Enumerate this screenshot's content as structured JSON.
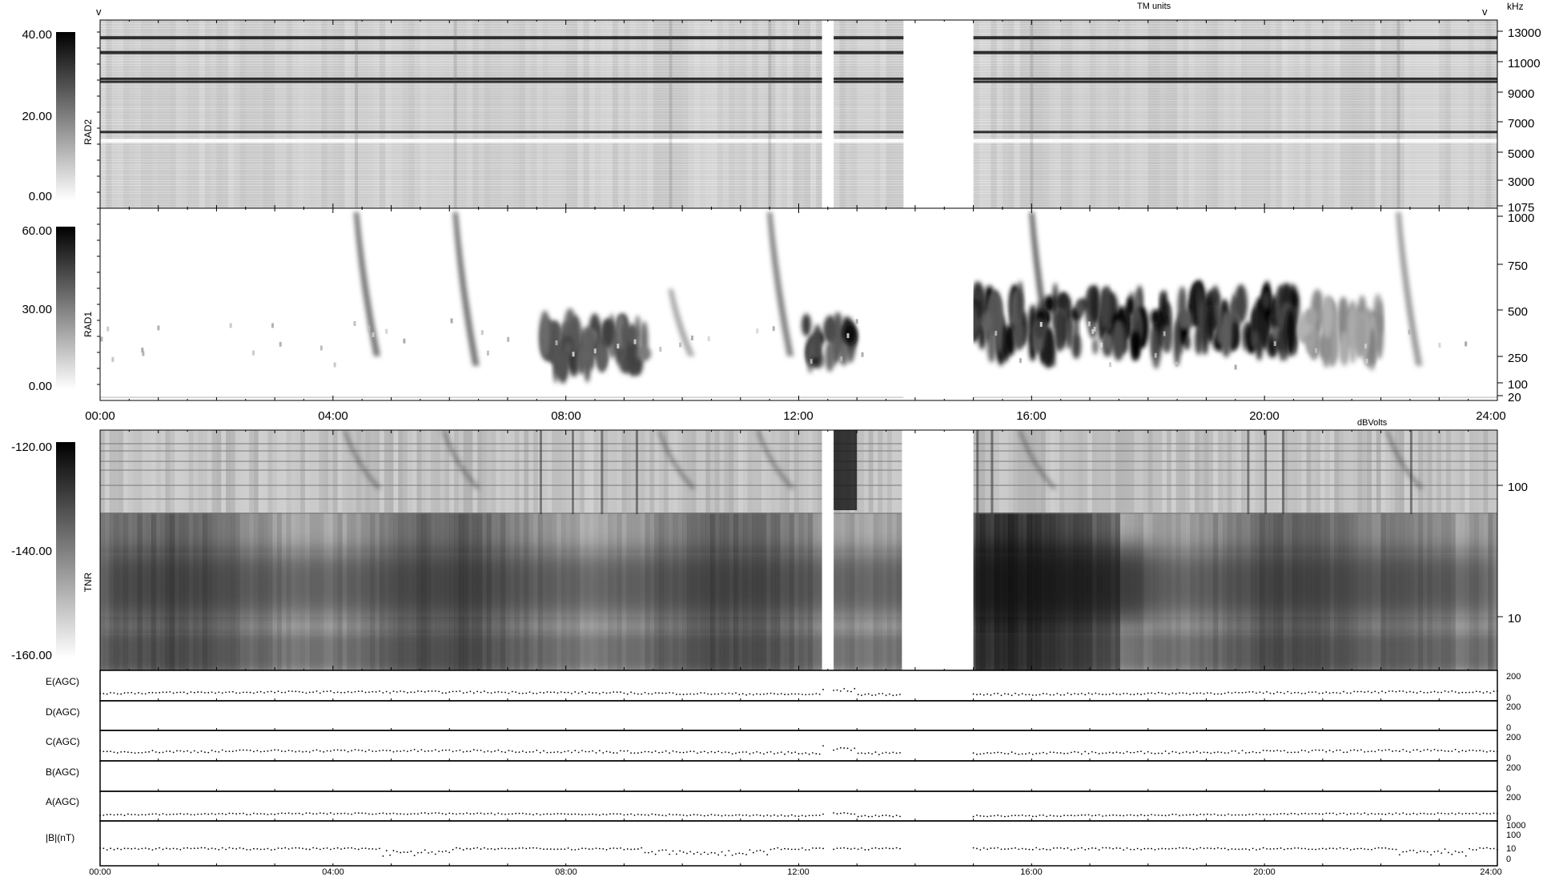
{
  "header": {
    "tm_units": "TM units",
    "khz": "kHz",
    "dbvolts": "dBVolts",
    "v_left": "v",
    "v_right": "v"
  },
  "chart_data": [
    {
      "type": "heatmap",
      "name": "RAD2",
      "ylabel": "RAD2",
      "colorbar": {
        "ticks": [
          "40.00",
          "20.00",
          "0.00"
        ],
        "range": [
          0,
          40
        ]
      },
      "yticks": [
        "13000",
        "11000",
        "9000",
        "7000",
        "5000",
        "3000",
        "1075"
      ],
      "bright_bands_hz": [
        12600,
        11600,
        9800,
        9600,
        6200
      ],
      "data_gaps_hours": [
        [
          12.4,
          12.6
        ],
        [
          13.8,
          15.0
        ]
      ]
    },
    {
      "type": "heatmap",
      "name": "RAD1",
      "ylabel": "RAD1",
      "colorbar": {
        "ticks": [
          "60.00",
          "30.00",
          "0.00"
        ],
        "range": [
          0,
          60
        ]
      },
      "yticks": [
        "1000",
        "750",
        "500",
        "250",
        "100",
        "20"
      ],
      "bursts": [
        {
          "time": 4.4,
          "top": 1000,
          "bottom": 250,
          "strength": 0.55
        },
        {
          "time": 6.1,
          "top": 1000,
          "bottom": 200,
          "strength": 0.55
        },
        {
          "time": 9.8,
          "top": 600,
          "bottom": 250,
          "strength": 0.35
        },
        {
          "time": 11.5,
          "top": 1000,
          "bottom": 250,
          "strength": 0.5
        },
        {
          "time": 16.0,
          "top": 1000,
          "bottom": 200,
          "strength": 0.6
        },
        {
          "time": 22.3,
          "top": 1000,
          "bottom": 200,
          "strength": 0.4
        }
      ],
      "blobs": [
        {
          "t0": 7.6,
          "t1": 9.4,
          "f": 300,
          "strength": 0.8
        },
        {
          "t0": 12.1,
          "t1": 12.9,
          "f": 320,
          "strength": 0.95
        },
        {
          "t0": 15.0,
          "t1": 20.6,
          "f": 420,
          "strength": 1.0
        },
        {
          "t0": 20.6,
          "t1": 22.0,
          "f": 380,
          "strength": 0.5
        }
      ]
    },
    {
      "type": "heatmap",
      "name": "TNR",
      "ylabel": "TNR",
      "colorbar": {
        "ticks": [
          "-120.00",
          "-140.00",
          "-160.00"
        ],
        "range": [
          -160,
          -120
        ]
      },
      "yticks": [
        "100",
        "10"
      ],
      "xticks": [
        "00:00",
        "04:00",
        "08:00",
        "12:00",
        "16:00",
        "20:00",
        "24:00"
      ]
    },
    {
      "type": "line",
      "name": "E(AGC)",
      "ylabel": "E(AGC)",
      "ylim": [
        0,
        200
      ],
      "yticks": [
        "200",
        "0"
      ],
      "baseline": 40
    },
    {
      "type": "line",
      "name": "D(AGC)",
      "ylabel": "D(AGC)",
      "ylim": [
        0,
        200
      ],
      "yticks": [
        "200",
        "0"
      ],
      "baseline": null
    },
    {
      "type": "line",
      "name": "C(AGC)",
      "ylabel": "C(AGC)",
      "ylim": [
        0,
        200
      ],
      "yticks": [
        "200",
        "0"
      ],
      "baseline": 50
    },
    {
      "type": "line",
      "name": "B(AGC)",
      "ylabel": "B(AGC)",
      "ylim": [
        0,
        200
      ],
      "yticks": [
        "200",
        "0"
      ],
      "baseline": null
    },
    {
      "type": "line",
      "name": "A(AGC)",
      "ylabel": "A(AGC)",
      "ylim": [
        0,
        200
      ],
      "yticks": [
        "200",
        "0"
      ],
      "baseline": 30
    },
    {
      "type": "line",
      "name": "|B|(nT)",
      "ylabel": "|B|(nT)",
      "yscale": "log",
      "ylim": [
        0,
        1000
      ],
      "yticks": [
        "1000",
        "100",
        "10",
        "0"
      ],
      "baseline": 10,
      "xticks": [
        "00:00",
        "04:00",
        "08:00",
        "12:00",
        "16:00",
        "20:00",
        "24:00"
      ]
    }
  ]
}
